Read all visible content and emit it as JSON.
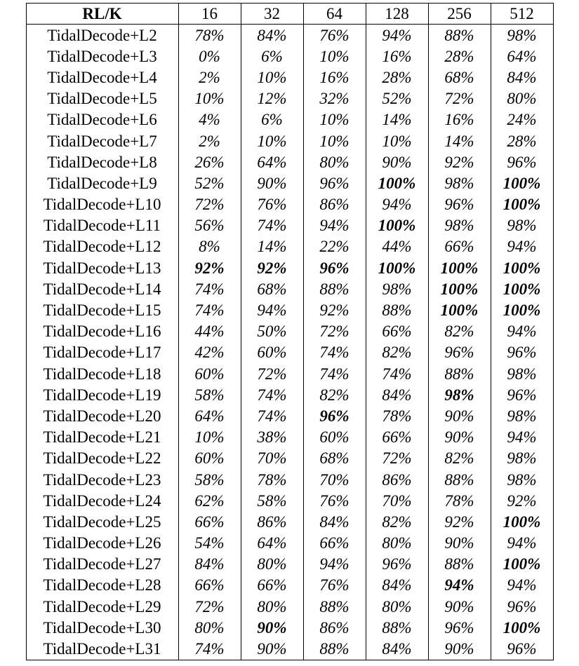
{
  "table": {
    "corner_header": "RL/K",
    "columns": [
      "16",
      "32",
      "64",
      "128",
      "256",
      "512"
    ],
    "rows": [
      {
        "label": "TidalDecode+L2",
        "values": [
          "78%",
          "84%",
          "76%",
          "94%",
          "88%",
          "98%"
        ],
        "bold": [
          false,
          false,
          false,
          false,
          false,
          false
        ]
      },
      {
        "label": "TidalDecode+L3",
        "values": [
          "0%",
          "6%",
          "10%",
          "16%",
          "28%",
          "64%"
        ],
        "bold": [
          false,
          false,
          false,
          false,
          false,
          false
        ]
      },
      {
        "label": "TidalDecode+L4",
        "values": [
          "2%",
          "10%",
          "16%",
          "28%",
          "68%",
          "84%"
        ],
        "bold": [
          false,
          false,
          false,
          false,
          false,
          false
        ]
      },
      {
        "label": "TidalDecode+L5",
        "values": [
          "10%",
          "12%",
          "32%",
          "52%",
          "72%",
          "80%"
        ],
        "bold": [
          false,
          false,
          false,
          false,
          false,
          false
        ]
      },
      {
        "label": "TidalDecode+L6",
        "values": [
          "4%",
          "6%",
          "10%",
          "14%",
          "16%",
          "24%"
        ],
        "bold": [
          false,
          false,
          false,
          false,
          false,
          false
        ]
      },
      {
        "label": "TidalDecode+L7",
        "values": [
          "2%",
          "10%",
          "10%",
          "10%",
          "14%",
          "28%"
        ],
        "bold": [
          false,
          false,
          false,
          false,
          false,
          false
        ]
      },
      {
        "label": "TidalDecode+L8",
        "values": [
          "26%",
          "64%",
          "80%",
          "90%",
          "92%",
          "96%"
        ],
        "bold": [
          false,
          false,
          false,
          false,
          false,
          false
        ]
      },
      {
        "label": "TidalDecode+L9",
        "values": [
          "52%",
          "90%",
          "96%",
          "100%",
          "98%",
          "100%"
        ],
        "bold": [
          false,
          false,
          false,
          true,
          false,
          true
        ]
      },
      {
        "label": "TidalDecode+L10",
        "values": [
          "72%",
          "76%",
          "86%",
          "94%",
          "96%",
          "100%"
        ],
        "bold": [
          false,
          false,
          false,
          false,
          false,
          true
        ]
      },
      {
        "label": "TidalDecode+L11",
        "values": [
          "56%",
          "74%",
          "94%",
          "100%",
          "98%",
          "98%"
        ],
        "bold": [
          false,
          false,
          false,
          true,
          false,
          false
        ]
      },
      {
        "label": "TidalDecode+L12",
        "values": [
          "8%",
          "14%",
          "22%",
          "44%",
          "66%",
          "94%"
        ],
        "bold": [
          false,
          false,
          false,
          false,
          false,
          false
        ]
      },
      {
        "label": "TidalDecode+L13",
        "values": [
          "92%",
          "92%",
          "96%",
          "100%",
          "100%",
          "100%"
        ],
        "bold": [
          true,
          true,
          true,
          true,
          true,
          true
        ]
      },
      {
        "label": "TidalDecode+L14",
        "values": [
          "74%",
          "68%",
          "88%",
          "98%",
          "100%",
          "100%"
        ],
        "bold": [
          false,
          false,
          false,
          false,
          true,
          true
        ]
      },
      {
        "label": "TidalDecode+L15",
        "values": [
          "74%",
          "94%",
          "92%",
          "88%",
          "100%",
          "100%"
        ],
        "bold": [
          false,
          false,
          false,
          false,
          true,
          true
        ]
      },
      {
        "label": "TidalDecode+L16",
        "values": [
          "44%",
          "50%",
          "72%",
          "66%",
          "82%",
          "94%"
        ],
        "bold": [
          false,
          false,
          false,
          false,
          false,
          false
        ]
      },
      {
        "label": "TidalDecode+L17",
        "values": [
          "42%",
          "60%",
          "74%",
          "82%",
          "96%",
          "96%"
        ],
        "bold": [
          false,
          false,
          false,
          false,
          false,
          false
        ]
      },
      {
        "label": "TidalDecode+L18",
        "values": [
          "60%",
          "72%",
          "74%",
          "74%",
          "88%",
          "98%"
        ],
        "bold": [
          false,
          false,
          false,
          false,
          false,
          false
        ]
      },
      {
        "label": "TidalDecode+L19",
        "values": [
          "58%",
          "74%",
          "82%",
          "84%",
          "98%",
          "96%"
        ],
        "bold": [
          false,
          false,
          false,
          false,
          true,
          false
        ]
      },
      {
        "label": "TidalDecode+L20",
        "values": [
          "64%",
          "74%",
          "96%",
          "78%",
          "90%",
          "98%"
        ],
        "bold": [
          false,
          false,
          true,
          false,
          false,
          false
        ]
      },
      {
        "label": "TidalDecode+L21",
        "values": [
          "10%",
          "38%",
          "60%",
          "66%",
          "90%",
          "94%"
        ],
        "bold": [
          false,
          false,
          false,
          false,
          false,
          false
        ]
      },
      {
        "label": "TidalDecode+L22",
        "values": [
          "60%",
          "70%",
          "68%",
          "72%",
          "82%",
          "98%"
        ],
        "bold": [
          false,
          false,
          false,
          false,
          false,
          false
        ]
      },
      {
        "label": "TidalDecode+L23",
        "values": [
          "58%",
          "78%",
          "70%",
          "86%",
          "88%",
          "98%"
        ],
        "bold": [
          false,
          false,
          false,
          false,
          false,
          false
        ]
      },
      {
        "label": "TidalDecode+L24",
        "values": [
          "62%",
          "58%",
          "76%",
          "70%",
          "78%",
          "92%"
        ],
        "bold": [
          false,
          false,
          false,
          false,
          false,
          false
        ]
      },
      {
        "label": "TidalDecode+L25",
        "values": [
          "66%",
          "86%",
          "84%",
          "82%",
          "92%",
          "100%"
        ],
        "bold": [
          false,
          false,
          false,
          false,
          false,
          true
        ]
      },
      {
        "label": "TidalDecode+L26",
        "values": [
          "54%",
          "64%",
          "66%",
          "80%",
          "90%",
          "94%"
        ],
        "bold": [
          false,
          false,
          false,
          false,
          false,
          false
        ]
      },
      {
        "label": "TidalDecode+L27",
        "values": [
          "84%",
          "80%",
          "94%",
          "96%",
          "88%",
          "100%"
        ],
        "bold": [
          false,
          false,
          false,
          false,
          false,
          true
        ]
      },
      {
        "label": "TidalDecode+L28",
        "values": [
          "66%",
          "66%",
          "76%",
          "84%",
          "94%",
          "94%"
        ],
        "bold": [
          false,
          false,
          false,
          false,
          true,
          false
        ]
      },
      {
        "label": "TidalDecode+L29",
        "values": [
          "72%",
          "80%",
          "88%",
          "80%",
          "90%",
          "96%"
        ],
        "bold": [
          false,
          false,
          false,
          false,
          false,
          false
        ]
      },
      {
        "label": "TidalDecode+L30",
        "values": [
          "80%",
          "90%",
          "86%",
          "88%",
          "96%",
          "100%"
        ],
        "bold": [
          false,
          true,
          false,
          false,
          false,
          true
        ]
      },
      {
        "label": "TidalDecode+L31",
        "values": [
          "74%",
          "90%",
          "88%",
          "84%",
          "90%",
          "96%"
        ],
        "bold": [
          false,
          false,
          false,
          false,
          false,
          false
        ]
      }
    ]
  }
}
